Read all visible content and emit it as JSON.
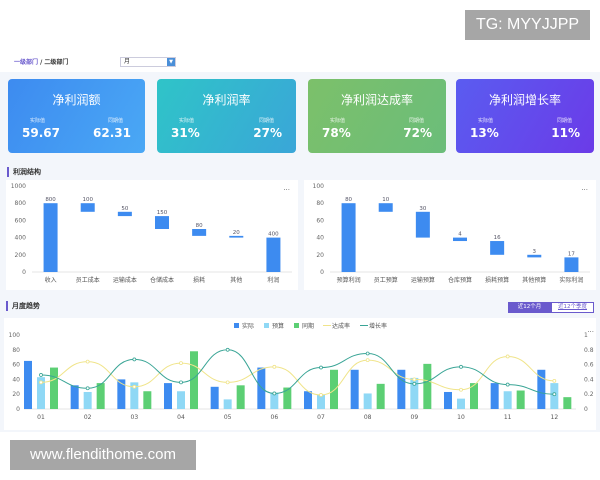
{
  "header": {
    "breadcrumb": [
      "一级部门",
      "二级部门"
    ],
    "separator": "/",
    "period_select": "月"
  },
  "cards": [
    {
      "title": "净利润额",
      "actual_label": "实际值",
      "actual": "59.67",
      "prior_label": "同期值",
      "prior": "62.31",
      "colors": [
        "#3d8bf0",
        "#4aa8f5"
      ]
    },
    {
      "title": "净利润率",
      "actual_label": "实际值",
      "actual": "31%",
      "prior_label": "同期值",
      "prior": "27%",
      "colors": [
        "#2fc4c8",
        "#3aa6d8"
      ]
    },
    {
      "title": "净利润达成率",
      "actual_label": "实际值",
      "actual": "78%",
      "prior_label": "同期值",
      "prior": "72%",
      "colors": [
        "#7cc06a",
        "#6bbd7a"
      ]
    },
    {
      "title": "净利润增长率",
      "actual_label": "实际值",
      "actual": "13%",
      "prior_label": "同期值",
      "prior": "11%",
      "colors": [
        "#5a5cf0",
        "#6b3be8"
      ]
    }
  ],
  "profit_section": {
    "title": "利润结构",
    "menu": "..."
  },
  "chart_data": [
    {
      "type": "bar",
      "subtype": "waterfall",
      "categories": [
        "收入",
        "员工成本",
        "运输成本",
        "仓储成本",
        "损耗",
        "其他",
        "利润"
      ],
      "values": [
        800,
        100,
        50,
        150,
        80,
        20,
        400
      ],
      "ylim": [
        0,
        1000
      ],
      "yticks": [
        0,
        200,
        400,
        600,
        800,
        1000
      ],
      "color": "#3d8bf0"
    },
    {
      "type": "bar",
      "subtype": "waterfall",
      "categories": [
        "预算利润",
        "员工预算",
        "运输预算",
        "仓库预算",
        "损耗预算",
        "其他预算",
        "实际利润"
      ],
      "values": [
        80,
        10,
        30,
        4,
        16,
        3,
        17
      ],
      "ylim": [
        0,
        100
      ],
      "yticks": [
        0,
        20,
        40,
        60,
        80,
        100
      ],
      "color": "#3d8bf0"
    },
    {
      "type": "bar+line",
      "categories": [
        "01",
        "02",
        "03",
        "04",
        "05",
        "06",
        "07",
        "08",
        "09",
        "10",
        "11",
        "12"
      ],
      "ylim": [
        0,
        100
      ],
      "yticks": [
        0,
        20,
        40,
        60,
        80,
        100
      ],
      "y2lim": [
        0,
        1
      ],
      "y2ticks": [
        "0",
        "0.2",
        "0.4",
        "0.6",
        "0.8",
        "1"
      ],
      "legend": "top",
      "series": [
        {
          "name": "实际",
          "kind": "bar",
          "color": "#3d8bf0",
          "values": [
            65,
            32,
            40,
            35,
            30,
            56,
            24,
            53,
            53,
            23,
            35,
            53
          ]
        },
        {
          "name": "预算",
          "kind": "bar",
          "color": "#8fd8f5",
          "values": [
            43,
            23,
            36,
            24,
            13,
            22,
            19,
            21,
            42,
            14,
            24,
            35
          ]
        },
        {
          "name": "同期",
          "kind": "bar",
          "color": "#5ccf74",
          "values": [
            56,
            35,
            24,
            78,
            32,
            29,
            53,
            34,
            61,
            35,
            25,
            16
          ]
        },
        {
          "name": "达成率",
          "kind": "line",
          "axis": "right",
          "color": "#f0e48a",
          "values": [
            0.36,
            0.64,
            0.3,
            0.62,
            0.36,
            0.57,
            0.19,
            0.66,
            0.4,
            0.26,
            0.71,
            0.38
          ]
        },
        {
          "name": "增长率",
          "kind": "line",
          "axis": "right",
          "color": "#3aa596",
          "values": [
            0.46,
            0.28,
            0.67,
            0.36,
            0.8,
            0.21,
            0.56,
            0.75,
            0.34,
            0.57,
            0.33,
            0.2
          ]
        }
      ]
    }
  ],
  "trend_section": {
    "title": "月度趋势",
    "toggle": [
      "近12个月",
      "近12个季度"
    ],
    "active": 0,
    "menu": "..."
  },
  "watermarks": [
    "TG: MYYJJPP",
    "www.flendithome.com"
  ]
}
